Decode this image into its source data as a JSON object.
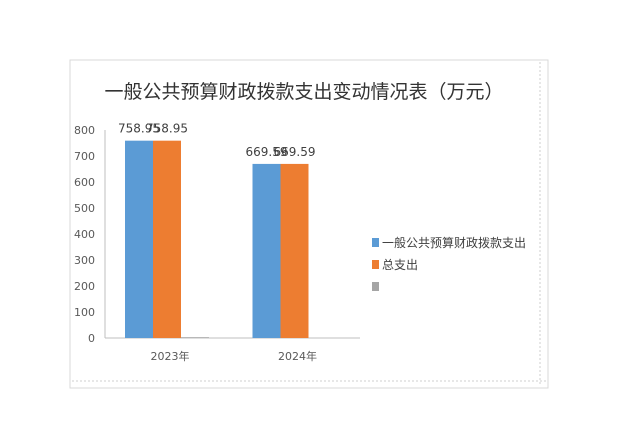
{
  "chart_data": {
    "type": "bar",
    "title": "一般公共预算财政拨款支出变动情况表（万元）",
    "categories": [
      "2023年",
      "2024年"
    ],
    "series": [
      {
        "name": "一般公共预算财政拨款支出",
        "values": [
          758.95,
          669.59
        ],
        "color": "#5b9bd5",
        "labels": [
          "758.95",
          "669.59"
        ]
      },
      {
        "name": "总支出",
        "values": [
          758.95,
          669.59
        ],
        "color": "#ed7d31",
        "labels": [
          "758.95",
          "669.59"
        ]
      },
      {
        "name": "",
        "values": [
          3,
          0
        ],
        "color": "#a5a5a5",
        "labels": [
          "",
          ""
        ]
      }
    ],
    "ylim": [
      0,
      800
    ],
    "yticks": [
      0,
      100,
      200,
      300,
      400,
      500,
      600,
      700,
      800
    ],
    "grid": false,
    "legend_position": "right"
  }
}
